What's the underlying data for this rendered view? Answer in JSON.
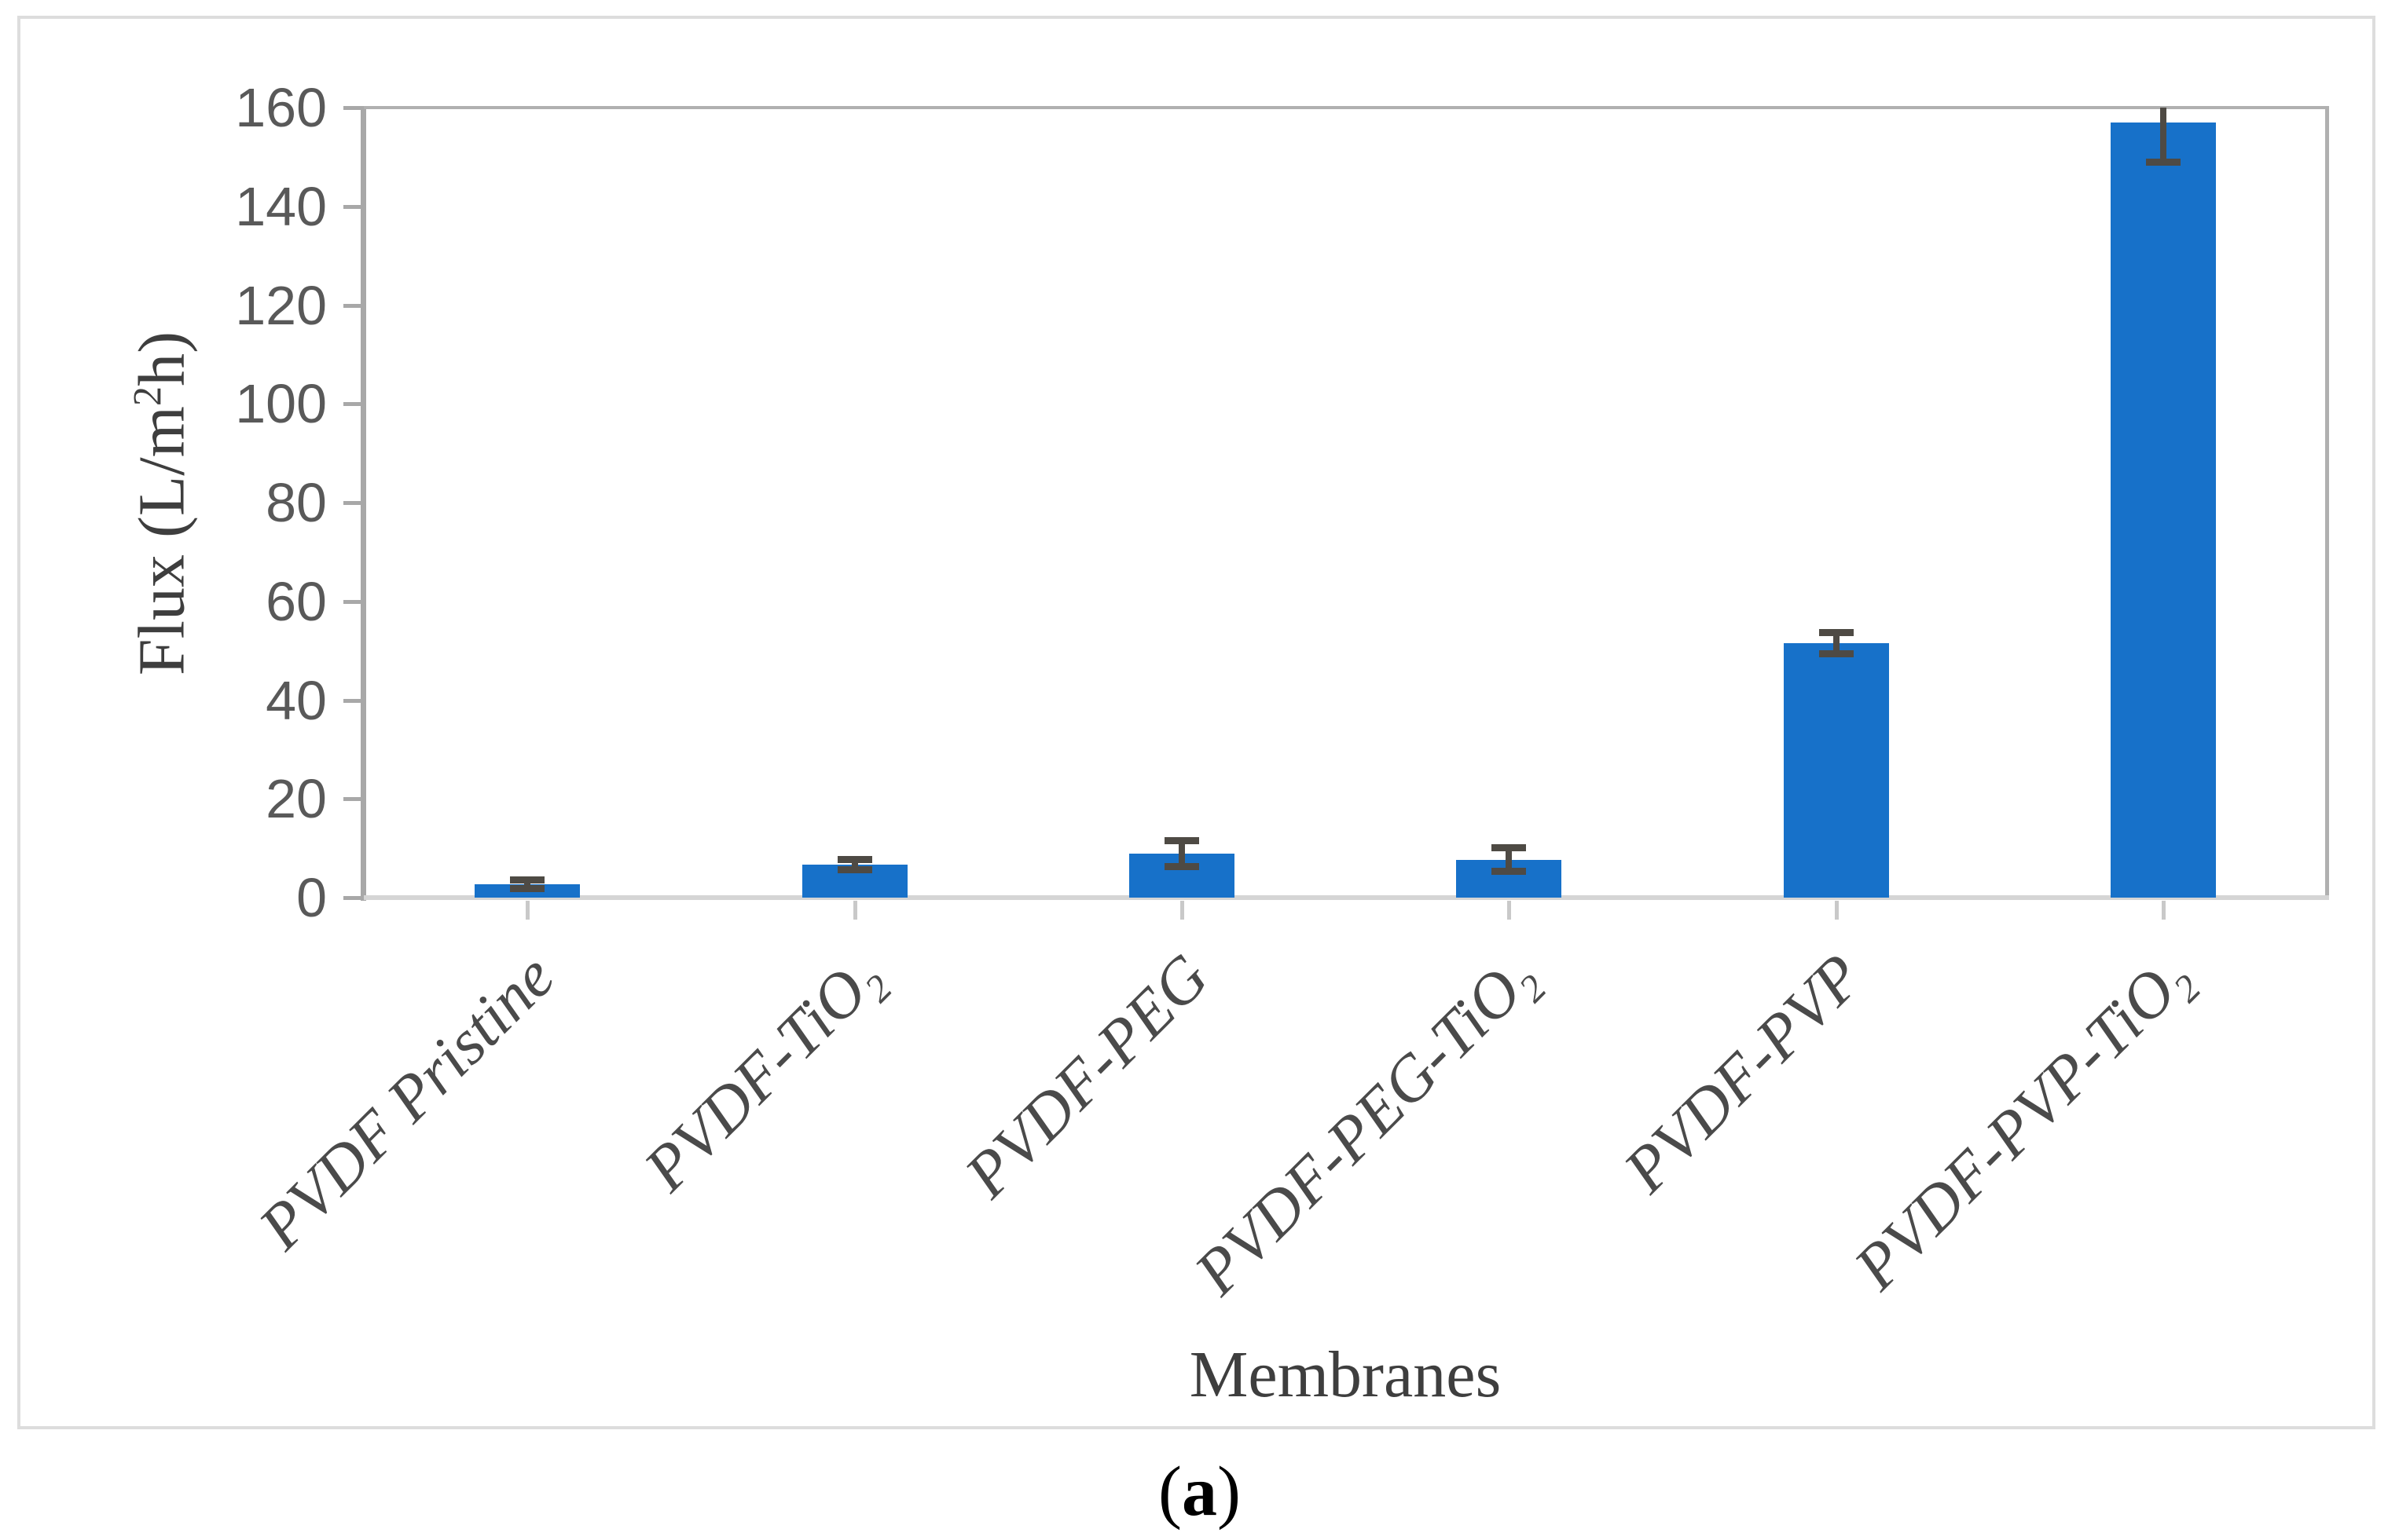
{
  "figure": {
    "caption": {
      "open": "(",
      "letter": "a",
      "close": ")"
    }
  },
  "chart_data": {
    "type": "bar",
    "title": "",
    "categories": [
      "PVDF Pristine",
      "PVDF-TiO₂",
      "PVDF-PEG",
      "PVDF-PEG-TiO₂",
      "PVDF-PVP",
      "PVDF-PVP-TiO₂"
    ],
    "values": [
      2.7,
      6.7,
      8.9,
      7.7,
      51.5,
      157
    ],
    "errors": [
      0.9,
      1.0,
      2.6,
      2.4,
      2.1,
      8
    ],
    "xlabel": "Membranes",
    "ylabel": "Flux (L/m²h)",
    "ylim": [
      0,
      160
    ],
    "yticks": [
      0,
      20,
      40,
      60,
      80,
      100,
      120,
      140,
      160
    ],
    "grid": false,
    "legend": null,
    "colors": {
      "bar": "#1771c9",
      "error_bar": "#4e4a44",
      "axis_frame": "#b0b0b0",
      "y_axis_line": "#a8a8a8",
      "baseline": "#d5d5d5",
      "tick_label": "#595959",
      "axis_title": "#3e3e3e",
      "category_label": "#4a4a4a"
    }
  }
}
